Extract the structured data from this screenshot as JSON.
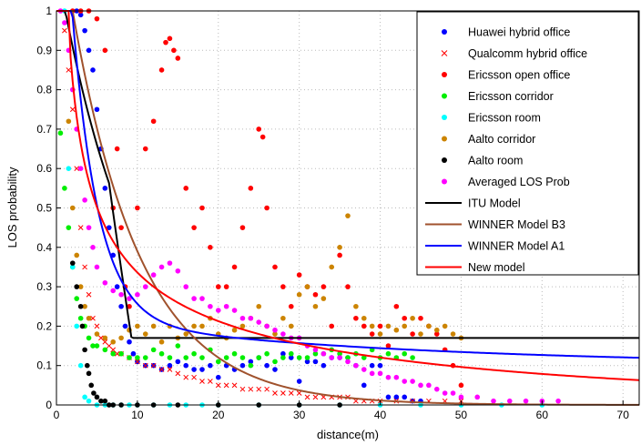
{
  "chart_data": {
    "type": "scatter",
    "xlabel": "distance(m)",
    "ylabel": "LOS probability",
    "xlim": [
      0,
      72
    ],
    "ylim": [
      0,
      1
    ],
    "x_ticks": [
      0,
      10,
      20,
      30,
      40,
      50,
      60,
      70
    ],
    "y_ticks": [
      0,
      0.1,
      0.2,
      0.3,
      0.4,
      0.5,
      0.6,
      0.7,
      0.8,
      0.9,
      1
    ],
    "x_tick_labels": [
      "0",
      "10",
      "20",
      "30",
      "40",
      "50",
      "60",
      "70"
    ],
    "y_tick_labels": [
      "0",
      "0.1",
      "0.2",
      "0.3",
      "0.4",
      "0.5",
      "0.6",
      "0.7",
      "0.8",
      "0.9",
      "1"
    ],
    "grid": "dotted",
    "legend_position": "top-right",
    "series": [
      {
        "name": "Huawei hybrid office",
        "marker": "dot",
        "color": "#0000ff",
        "x": [
          2.5,
          3,
          3.5,
          4,
          4.5,
          5,
          5.5,
          6,
          6.5,
          7,
          7.5,
          8,
          8.5,
          9,
          9.5,
          10,
          11,
          12,
          13,
          14,
          15,
          16,
          17,
          18,
          19,
          20,
          21,
          22,
          23,
          24,
          25,
          26,
          27,
          28,
          29,
          30,
          31,
          32,
          33,
          34,
          35,
          36,
          37,
          38,
          39,
          40,
          41,
          42,
          43,
          44,
          45
        ],
        "y": [
          1,
          0.99,
          0.95,
          0.9,
          0.85,
          0.75,
          0.65,
          0.55,
          0.45,
          0.38,
          0.3,
          0.25,
          0.2,
          0.16,
          0.13,
          0.11,
          0.1,
          0.1,
          0.09,
          0.1,
          0.11,
          0.1,
          0.09,
          0.09,
          0.1,
          0.07,
          0.1,
          0.09,
          0.1,
          0.11,
          0.12,
          0.1,
          0.09,
          0.13,
          0.12,
          0.06,
          0.11,
          0.11,
          0.1,
          0.12,
          0.12,
          0.12,
          0.1,
          0.05,
          0.1,
          0.1,
          0.02,
          0.02,
          0.02,
          0.01,
          0.01
        ]
      },
      {
        "name": "Qualcomm hybrid office",
        "marker": "x",
        "color": "#ff0000",
        "x": [
          1,
          1.5,
          2,
          2.5,
          3,
          3.5,
          4,
          4.5,
          5,
          5.5,
          6,
          6.5,
          7,
          7.5,
          8,
          9,
          10,
          11,
          12,
          13,
          14,
          15,
          16,
          17,
          18,
          19,
          20,
          21,
          22,
          23,
          24,
          25,
          26,
          27,
          28,
          29,
          30,
          31,
          32,
          33,
          34,
          35,
          36,
          37,
          38,
          39,
          40,
          42,
          44,
          46,
          48,
          50
        ],
        "y": [
          0.95,
          0.85,
          0.75,
          0.6,
          0.45,
          0.35,
          0.28,
          0.22,
          0.2,
          0.17,
          0.16,
          0.15,
          0.14,
          0.13,
          0.13,
          0.12,
          0.11,
          0.1,
          0.1,
          0.09,
          0.09,
          0.08,
          0.07,
          0.07,
          0.06,
          0.06,
          0.05,
          0.05,
          0.05,
          0.04,
          0.04,
          0.04,
          0.04,
          0.03,
          0.03,
          0.03,
          0.03,
          0.02,
          0.02,
          0.02,
          0.02,
          0.02,
          0.02,
          0.01,
          0.01,
          0.01,
          0.01,
          0.01,
          0.01,
          0.01,
          0.01,
          0.01
        ]
      },
      {
        "name": "Ericsson open office",
        "marker": "dot",
        "color": "#ff0000",
        "x": [
          2,
          3,
          4,
          5,
          6,
          7,
          7.5,
          8,
          8.5,
          9,
          10,
          11,
          12,
          13,
          13.5,
          14,
          14.5,
          15,
          16,
          17,
          18,
          19,
          20,
          21,
          22,
          23,
          24,
          25,
          25.5,
          26,
          27,
          28,
          29,
          30,
          31,
          32,
          33,
          34,
          35,
          36,
          37,
          38,
          39,
          40,
          41,
          42,
          43,
          44,
          45,
          46,
          47,
          48,
          49,
          50
        ],
        "y": [
          1,
          1,
          1,
          0.98,
          0.9,
          0.5,
          0.65,
          0.45,
          0.3,
          0.25,
          0.5,
          0.65,
          0.72,
          0.85,
          0.92,
          0.93,
          0.9,
          0.88,
          0.55,
          0.45,
          0.5,
          0.4,
          0.3,
          0.3,
          0.35,
          0.45,
          0.55,
          0.7,
          0.68,
          0.5,
          0.35,
          0.3,
          0.25,
          0.33,
          0.3,
          0.28,
          0.3,
          0.2,
          0.38,
          0.3,
          0.22,
          0.2,
          0.18,
          0.2,
          0.15,
          0.25,
          0.22,
          0.18,
          0.22,
          0.2,
          0.18,
          0.14,
          0.1,
          0.05
        ]
      },
      {
        "name": "Ericsson corridor",
        "marker": "dot",
        "color": "#00ee00",
        "x": [
          0.5,
          1,
          1.5,
          2,
          2.5,
          3,
          3.5,
          4,
          4.5,
          5,
          6,
          7,
          8,
          9,
          10,
          11,
          12,
          13,
          14,
          15,
          16,
          17,
          18,
          19,
          20,
          21,
          22,
          23,
          24,
          25,
          26,
          27,
          28,
          29,
          30,
          31,
          32,
          33,
          34,
          35,
          36,
          37,
          38,
          39,
          40,
          41,
          42,
          43,
          44
        ],
        "y": [
          0.69,
          0.55,
          0.45,
          0.35,
          0.27,
          0.22,
          0.2,
          0.17,
          0.15,
          0.15,
          0.14,
          0.13,
          0.13,
          0.12,
          0.12,
          0.12,
          0.14,
          0.13,
          0.12,
          0.15,
          0.12,
          0.13,
          0.12,
          0.14,
          0.11,
          0.12,
          0.13,
          0.12,
          0.1,
          0.12,
          0.13,
          0.11,
          0.12,
          0.13,
          0.12,
          0.12,
          0.13,
          0.13,
          0.14,
          0.13,
          0.12,
          0.13,
          0.12,
          0.14,
          0.12,
          0.13,
          0.12,
          0.13,
          0.12
        ]
      },
      {
        "name": "Ericsson room",
        "marker": "dot",
        "color": "#00ffff",
        "x": [
          1,
          1.5,
          2,
          2.5,
          3,
          3.5,
          4,
          5,
          6,
          7,
          8,
          9,
          10,
          12,
          14,
          16,
          18,
          20,
          25,
          30,
          35,
          40,
          45,
          50,
          55,
          60
        ],
        "y": [
          1,
          0.6,
          0.35,
          0.2,
          0.1,
          0.02,
          0.01,
          0,
          0,
          0,
          0,
          0,
          0,
          0,
          0,
          0,
          0,
          0,
          0,
          0,
          0,
          0,
          0,
          0,
          0,
          0
        ]
      },
      {
        "name": "Aalto corridor",
        "marker": "dot",
        "color": "#cc8400",
        "x": [
          1.5,
          2,
          2.5,
          3,
          3.5,
          4,
          5,
          6,
          7,
          8,
          9,
          10,
          11,
          12,
          13,
          14,
          15,
          16,
          17,
          18,
          19,
          20,
          21,
          22,
          23,
          24,
          25,
          26,
          27,
          28,
          29,
          30,
          31,
          32,
          33,
          34,
          35,
          36,
          37,
          38,
          39,
          40,
          41,
          42,
          43,
          44,
          45,
          46,
          47,
          48,
          49,
          50
        ],
        "y": [
          0.72,
          0.5,
          0.38,
          0.3,
          0.25,
          0.22,
          0.18,
          0.17,
          0.16,
          0.17,
          0.19,
          0.2,
          0.18,
          0.2,
          0.16,
          0.2,
          0.17,
          0.18,
          0.2,
          0.2,
          0.22,
          0.18,
          0.17,
          0.19,
          0.2,
          0.22,
          0.25,
          0.2,
          0.18,
          0.22,
          0.2,
          0.28,
          0.3,
          0.25,
          0.27,
          0.35,
          0.4,
          0.48,
          0.25,
          0.22,
          0.2,
          0.18,
          0.2,
          0.19,
          0.2,
          0.22,
          0.18,
          0.2,
          0.19,
          0.2,
          0.18,
          0.17
        ]
      },
      {
        "name": "Aalto room",
        "marker": "dot",
        "color": "#000000",
        "x": [
          2,
          2.5,
          3,
          3.2,
          3.5,
          3.8,
          4,
          4.3,
          4.6,
          5,
          5.5,
          6,
          6.5,
          7,
          8,
          10,
          12,
          15,
          20,
          25,
          30,
          35
        ],
        "y": [
          0.36,
          0.3,
          0.25,
          0.2,
          0.14,
          0.1,
          0.08,
          0.05,
          0.03,
          0.02,
          0.01,
          0.01,
          0,
          0,
          0,
          0,
          0,
          0,
          0,
          0,
          0,
          0
        ]
      },
      {
        "name": "Averaged LOS Prob",
        "marker": "dot",
        "color": "#ff00ff",
        "x": [
          0.5,
          1,
          1.5,
          2,
          2.5,
          3,
          3.5,
          4,
          4.5,
          5,
          6,
          7,
          8,
          9,
          10,
          11,
          12,
          13,
          14,
          15,
          16,
          17,
          18,
          19,
          20,
          21,
          22,
          23,
          24,
          25,
          26,
          27,
          28,
          29,
          30,
          31,
          32,
          33,
          34,
          35,
          36,
          37,
          38,
          39,
          40,
          41,
          42,
          43,
          44,
          45,
          46,
          47,
          48,
          49,
          50,
          52,
          54,
          56,
          58,
          60,
          62
        ],
        "y": [
          1,
          0.97,
          0.9,
          0.8,
          0.7,
          0.6,
          0.52,
          0.45,
          0.4,
          0.35,
          0.31,
          0.29,
          0.28,
          0.27,
          0.28,
          0.3,
          0.33,
          0.35,
          0.36,
          0.34,
          0.3,
          0.27,
          0.27,
          0.25,
          0.24,
          0.25,
          0.24,
          0.22,
          0.22,
          0.21,
          0.2,
          0.19,
          0.18,
          0.17,
          0.17,
          0.15,
          0.14,
          0.13,
          0.12,
          0.12,
          0.11,
          0.1,
          0.09,
          0.08,
          0.08,
          0.07,
          0.07,
          0.06,
          0.06,
          0.05,
          0.05,
          0.04,
          0.03,
          0.03,
          0.02,
          0.02,
          0.01,
          0.01,
          0.01,
          0.01,
          0.01
        ]
      }
    ],
    "models": [
      {
        "name": "ITU Model",
        "color": "#000000"
      },
      {
        "name": "WINNER Model B3",
        "color": "#a0522d"
      },
      {
        "name": "WINNER Model A1",
        "color": "#0000ff"
      },
      {
        "name": "New model",
        "color": "#ff0000"
      }
    ]
  }
}
